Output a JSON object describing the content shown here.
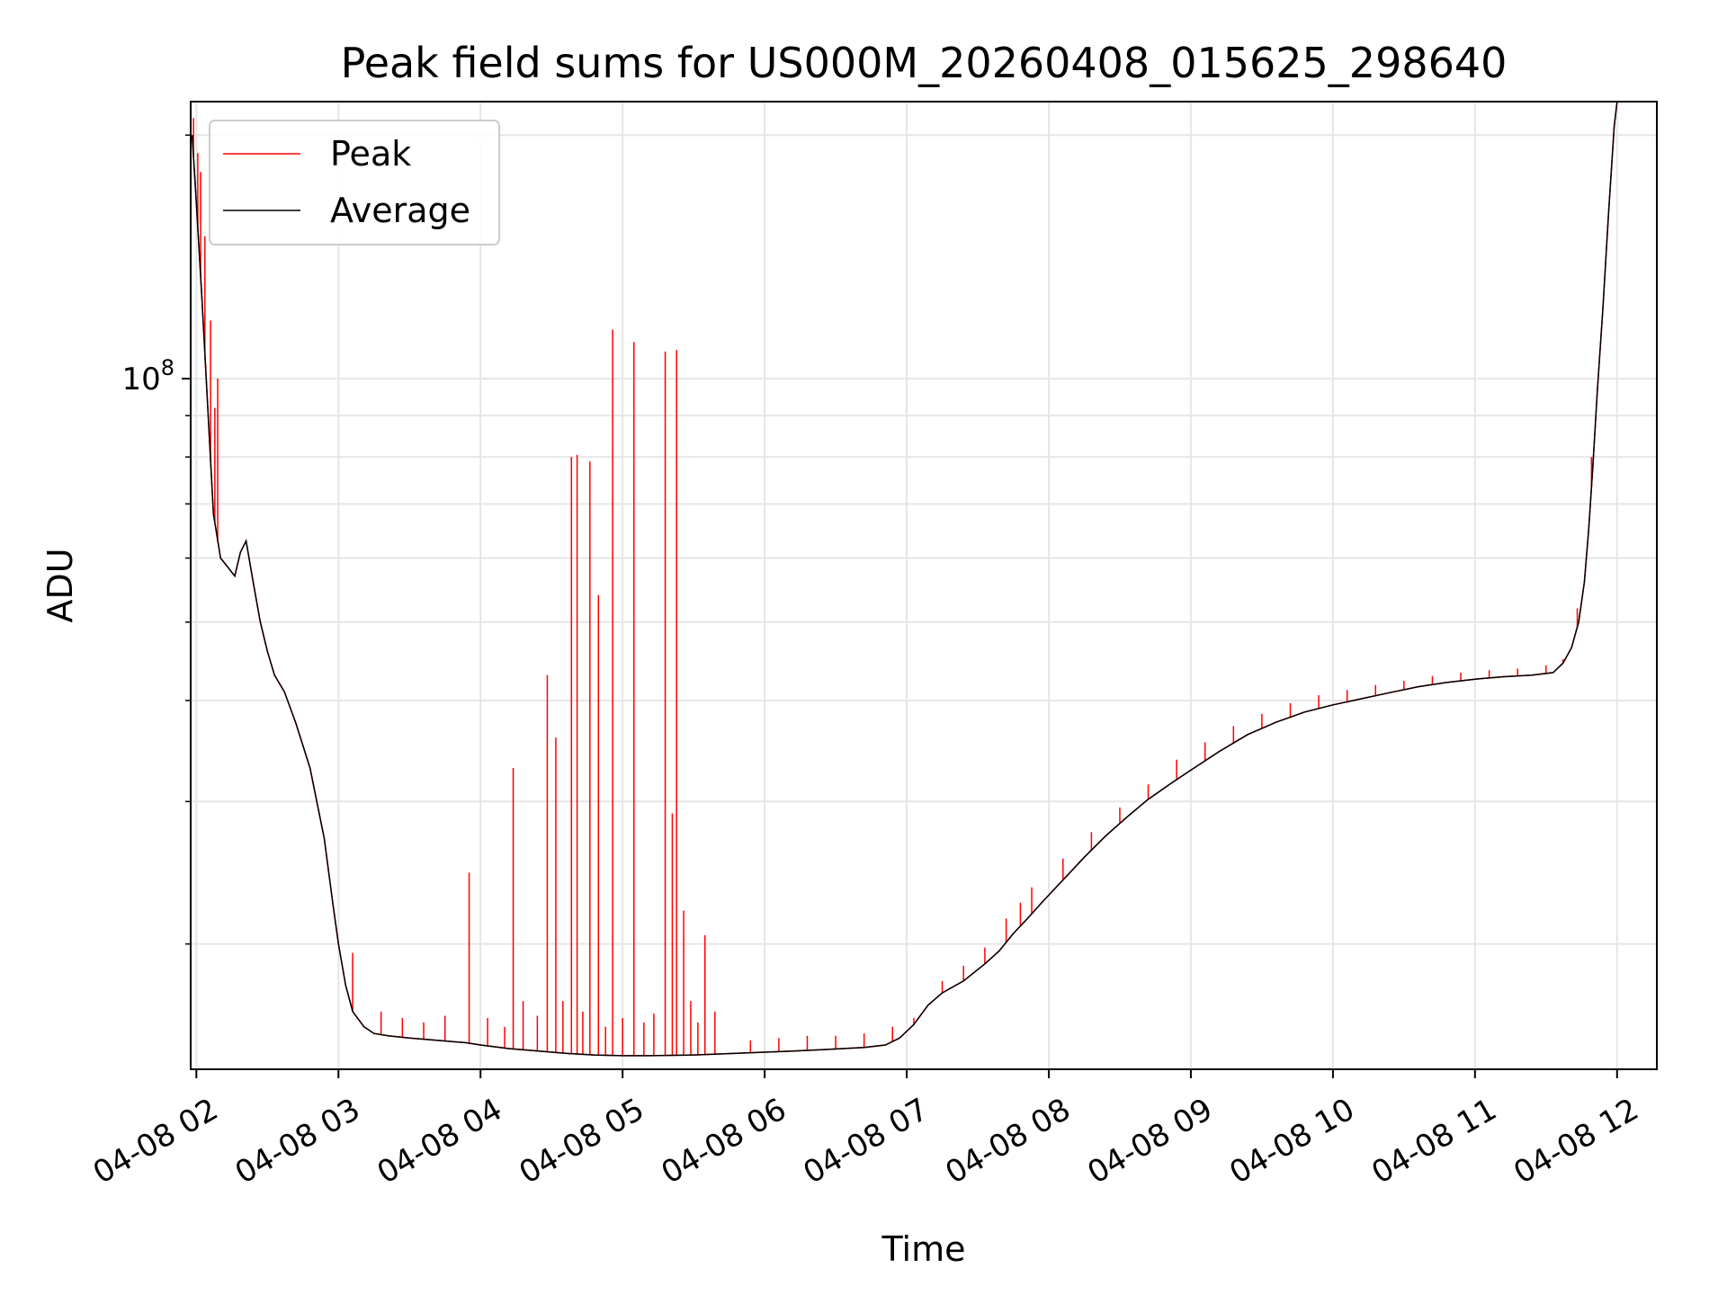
{
  "chart_data": {
    "type": "line",
    "title": "Peak field sums for US000M_20260408_015625_298640",
    "xlabel": "Time",
    "ylabel": "ADU",
    "yscale": "log",
    "ylim": [
      14000000,
      220000000
    ],
    "y_major_tick": {
      "value": 100000000,
      "base": "10",
      "exponent": "8"
    },
    "y_minor_ticks": [
      20000000,
      30000000,
      40000000,
      50000000,
      60000000,
      70000000,
      80000000,
      90000000,
      200000000
    ],
    "xlim": [
      1.96,
      12.28
    ],
    "x_ticks": [
      {
        "value": 2,
        "label": "04-08 02"
      },
      {
        "value": 3,
        "label": "04-08 03"
      },
      {
        "value": 4,
        "label": "04-08 04"
      },
      {
        "value": 5,
        "label": "04-08 05"
      },
      {
        "value": 6,
        "label": "04-08 06"
      },
      {
        "value": 7,
        "label": "04-08 07"
      },
      {
        "value": 8,
        "label": "04-08 08"
      },
      {
        "value": 9,
        "label": "04-08 09"
      },
      {
        "value": 10,
        "label": "04-08 10"
      },
      {
        "value": 11,
        "label": "04-08 11"
      },
      {
        "value": 12,
        "label": "04-08 12"
      }
    ],
    "grid": true,
    "legend_position": "top-left",
    "series": [
      {
        "name": "Average",
        "color": "#000000",
        "points": [
          [
            1.97,
            200000000
          ],
          [
            2.0,
            165000000
          ],
          [
            2.04,
            125000000
          ],
          [
            2.08,
            92000000
          ],
          [
            2.12,
            68000000
          ],
          [
            2.17,
            60000000
          ],
          [
            2.22,
            58500000
          ],
          [
            2.27,
            57000000
          ],
          [
            2.31,
            61000000
          ],
          [
            2.35,
            63000000
          ],
          [
            2.4,
            56000000
          ],
          [
            2.45,
            50000000
          ],
          [
            2.5,
            46000000
          ],
          [
            2.55,
            43000000
          ],
          [
            2.62,
            41000000
          ],
          [
            2.7,
            37500000
          ],
          [
            2.8,
            33000000
          ],
          [
            2.9,
            27000000
          ],
          [
            2.96,
            22500000
          ],
          [
            3.0,
            20000000
          ],
          [
            3.05,
            17800000
          ],
          [
            3.1,
            16500000
          ],
          [
            3.18,
            15800000
          ],
          [
            3.25,
            15500000
          ],
          [
            3.35,
            15400000
          ],
          [
            3.5,
            15300000
          ],
          [
            3.7,
            15200000
          ],
          [
            3.9,
            15100000
          ],
          [
            4.0,
            15000000
          ],
          [
            4.2,
            14850000
          ],
          [
            4.4,
            14750000
          ],
          [
            4.6,
            14650000
          ],
          [
            4.8,
            14580000
          ],
          [
            5.0,
            14550000
          ],
          [
            5.2,
            14550000
          ],
          [
            5.5,
            14580000
          ],
          [
            5.8,
            14650000
          ],
          [
            6.1,
            14720000
          ],
          [
            6.4,
            14800000
          ],
          [
            6.7,
            14900000
          ],
          [
            6.85,
            15000000
          ],
          [
            6.95,
            15300000
          ],
          [
            7.05,
            15900000
          ],
          [
            7.15,
            16800000
          ],
          [
            7.25,
            17400000
          ],
          [
            7.4,
            18000000
          ],
          [
            7.55,
            18900000
          ],
          [
            7.65,
            19600000
          ],
          [
            7.75,
            20600000
          ],
          [
            7.85,
            21500000
          ],
          [
            7.95,
            22500000
          ],
          [
            8.1,
            24000000
          ],
          [
            8.25,
            25600000
          ],
          [
            8.4,
            27200000
          ],
          [
            8.55,
            28700000
          ],
          [
            8.7,
            30200000
          ],
          [
            8.85,
            31500000
          ],
          [
            9.0,
            32800000
          ],
          [
            9.2,
            34600000
          ],
          [
            9.4,
            36300000
          ],
          [
            9.6,
            37600000
          ],
          [
            9.8,
            38700000
          ],
          [
            10.0,
            39500000
          ],
          [
            10.2,
            40200000
          ],
          [
            10.4,
            40900000
          ],
          [
            10.6,
            41600000
          ],
          [
            10.8,
            42100000
          ],
          [
            11.0,
            42500000
          ],
          [
            11.2,
            42800000
          ],
          [
            11.4,
            43000000
          ],
          [
            11.55,
            43300000
          ],
          [
            11.62,
            44500000
          ],
          [
            11.68,
            46500000
          ],
          [
            11.73,
            50000000
          ],
          [
            11.77,
            56000000
          ],
          [
            11.8,
            65000000
          ],
          [
            11.83,
            78000000
          ],
          [
            11.86,
            96000000
          ],
          [
            11.9,
            122000000
          ],
          [
            11.94,
            160000000
          ],
          [
            11.98,
            205000000
          ],
          [
            12.0,
            220000000
          ]
        ]
      },
      {
        "name": "Peak",
        "color": "#ff0000",
        "spikes": [
          [
            1.98,
            210000000
          ],
          [
            2.01,
            190000000
          ],
          [
            2.03,
            180000000
          ],
          [
            2.06,
            150000000
          ],
          [
            2.1,
            118000000
          ],
          [
            2.13,
            92000000
          ],
          [
            2.15,
            100000000
          ],
          [
            3.1,
            19500000
          ],
          [
            3.3,
            16500000
          ],
          [
            3.45,
            16200000
          ],
          [
            3.6,
            16000000
          ],
          [
            3.75,
            16300000
          ],
          [
            3.92,
            24500000
          ],
          [
            4.05,
            16200000
          ],
          [
            4.17,
            15800000
          ],
          [
            4.23,
            33000000
          ],
          [
            4.3,
            17000000
          ],
          [
            4.4,
            16300000
          ],
          [
            4.47,
            43000000
          ],
          [
            4.53,
            36000000
          ],
          [
            4.58,
            17000000
          ],
          [
            4.64,
            80000000
          ],
          [
            4.68,
            80500000
          ],
          [
            4.72,
            16500000
          ],
          [
            4.77,
            79000000
          ],
          [
            4.83,
            54000000
          ],
          [
            4.88,
            15800000
          ],
          [
            4.93,
            115000000
          ],
          [
            5.0,
            16200000
          ],
          [
            5.08,
            111000000
          ],
          [
            5.15,
            16000000
          ],
          [
            5.22,
            16400000
          ],
          [
            5.3,
            108000000
          ],
          [
            5.35,
            29000000
          ],
          [
            5.38,
            108500000
          ],
          [
            5.43,
            22000000
          ],
          [
            5.48,
            17000000
          ],
          [
            5.53,
            16000000
          ],
          [
            5.58,
            20500000
          ],
          [
            5.65,
            16500000
          ],
          [
            5.9,
            15200000
          ],
          [
            6.1,
            15300000
          ],
          [
            6.3,
            15400000
          ],
          [
            6.5,
            15400000
          ],
          [
            6.7,
            15500000
          ],
          [
            6.9,
            15800000
          ],
          [
            7.05,
            16200000
          ],
          [
            7.25,
            18000000
          ],
          [
            7.4,
            18800000
          ],
          [
            7.55,
            19800000
          ],
          [
            7.7,
            21500000
          ],
          [
            7.8,
            22500000
          ],
          [
            7.88,
            23500000
          ],
          [
            8.1,
            25500000
          ],
          [
            8.3,
            27500000
          ],
          [
            8.5,
            29500000
          ],
          [
            8.7,
            31500000
          ],
          [
            8.9,
            33800000
          ],
          [
            9.1,
            35500000
          ],
          [
            9.3,
            37200000
          ],
          [
            9.5,
            38500000
          ],
          [
            9.7,
            39700000
          ],
          [
            9.9,
            40600000
          ],
          [
            10.1,
            41200000
          ],
          [
            10.3,
            41800000
          ],
          [
            10.5,
            42300000
          ],
          [
            10.7,
            42900000
          ],
          [
            10.9,
            43300000
          ],
          [
            11.1,
            43600000
          ],
          [
            11.3,
            43800000
          ],
          [
            11.5,
            44200000
          ],
          [
            11.62,
            45000000
          ],
          [
            11.72,
            52000000
          ],
          [
            11.82,
            80000000
          ]
        ]
      }
    ]
  }
}
